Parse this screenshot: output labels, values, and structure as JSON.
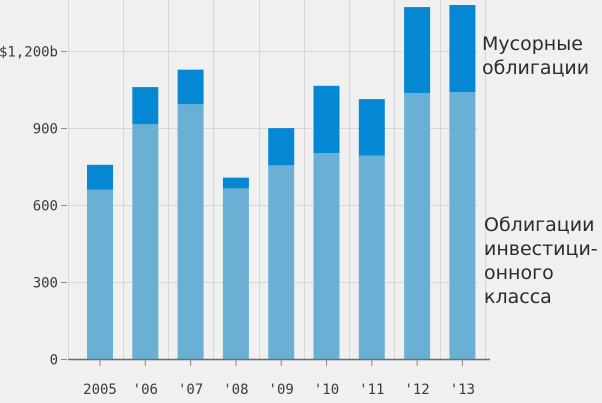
{
  "chart_data": {
    "type": "bar",
    "stacked": true,
    "categories": [
      "2005",
      "'06",
      "'07",
      "'08",
      "'09",
      "'10",
      "'11",
      "'12",
      "'13"
    ],
    "series": [
      {
        "name": "Облигации инвестиционного класса",
        "color": "#6ab0d5",
        "values": [
          660,
          915,
          993,
          665,
          755,
          803,
          793,
          1037,
          1040
        ]
      },
      {
        "name": "Мусорные облигации",
        "color": "#0588d4",
        "values": [
          97,
          145,
          135,
          42,
          145,
          262,
          220,
          335,
          340
        ]
      }
    ],
    "yticks": [
      0,
      300,
      600,
      900,
      1200
    ],
    "ytick_labels": [
      "0",
      "300",
      "600",
      "900",
      "$1,200b"
    ],
    "ylim": [
      0,
      1380
    ],
    "grid": true,
    "legend_position": "right",
    "legend": {
      "junk_lines": [
        "Мусорные",
        "облигации"
      ],
      "investment_lines": [
        "Облигации",
        "инвестици-",
        "онного",
        "класса"
      ]
    }
  }
}
